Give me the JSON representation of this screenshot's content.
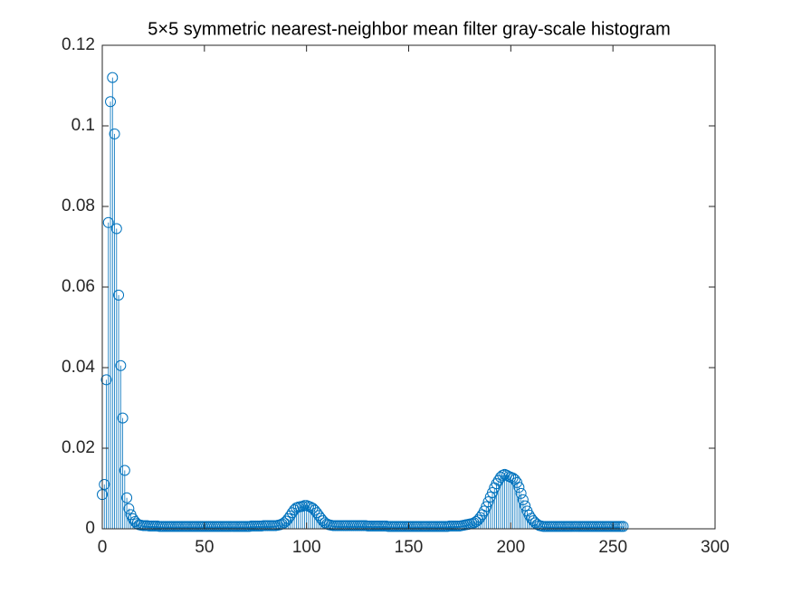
{
  "chart_data": {
    "type": "stem",
    "title": "5×5 symmetric nearest-neighbor mean filter gray-scale histogram",
    "color": "#0072bd",
    "xlim": [
      0,
      300
    ],
    "xticks": [
      0,
      50,
      100,
      150,
      200,
      250,
      300
    ],
    "ylim": [
      0,
      0.12
    ],
    "yticks": [
      0,
      0.02,
      0.04,
      0.06,
      0.08,
      0.1,
      0.12
    ],
    "grid": false,
    "x": [
      0,
      1,
      2,
      3,
      4,
      5,
      6,
      7,
      8,
      9,
      10,
      11,
      12,
      13,
      14,
      15,
      16,
      17,
      18,
      19,
      20,
      21,
      22,
      23,
      24,
      25,
      26,
      27,
      28,
      29,
      30,
      31,
      32,
      33,
      34,
      35,
      36,
      37,
      38,
      39,
      40,
      41,
      42,
      43,
      44,
      45,
      46,
      47,
      48,
      49,
      50,
      51,
      52,
      53,
      54,
      55,
      56,
      57,
      58,
      59,
      60,
      61,
      62,
      63,
      64,
      65,
      66,
      67,
      68,
      69,
      70,
      71,
      72,
      73,
      74,
      75,
      76,
      77,
      78,
      79,
      80,
      81,
      82,
      83,
      84,
      85,
      86,
      87,
      88,
      89,
      90,
      91,
      92,
      93,
      94,
      95,
      96,
      97,
      98,
      99,
      100,
      101,
      102,
      103,
      104,
      105,
      106,
      107,
      108,
      109,
      110,
      111,
      112,
      113,
      114,
      115,
      116,
      117,
      118,
      119,
      120,
      121,
      122,
      123,
      124,
      125,
      126,
      127,
      128,
      129,
      130,
      131,
      132,
      133,
      134,
      135,
      136,
      137,
      138,
      139,
      140,
      141,
      142,
      143,
      144,
      145,
      146,
      147,
      148,
      149,
      150,
      151,
      152,
      153,
      154,
      155,
      156,
      157,
      158,
      159,
      160,
      161,
      162,
      163,
      164,
      165,
      166,
      167,
      168,
      169,
      170,
      171,
      172,
      173,
      174,
      175,
      176,
      177,
      178,
      179,
      180,
      181,
      182,
      183,
      184,
      185,
      186,
      187,
      188,
      189,
      190,
      191,
      192,
      193,
      194,
      195,
      196,
      197,
      198,
      199,
      200,
      201,
      202,
      203,
      204,
      205,
      206,
      207,
      208,
      209,
      210,
      211,
      212,
      213,
      214,
      215,
      216,
      217,
      218,
      219,
      220,
      221,
      222,
      223,
      224,
      225,
      226,
      227,
      228,
      229,
      230,
      231,
      232,
      233,
      234,
      235,
      236,
      237,
      238,
      239,
      240,
      241,
      242,
      243,
      244,
      245,
      246,
      247,
      248,
      249,
      250,
      251,
      252,
      253,
      254,
      255
    ],
    "values": [
      0.0085,
      0.011,
      0.037,
      0.076,
      0.106,
      0.112,
      0.098,
      0.0745,
      0.058,
      0.0405,
      0.0275,
      0.0145,
      0.0077,
      0.005,
      0.0035,
      0.0025,
      0.0018,
      0.0013,
      0.001,
      0.0009,
      0.0008,
      0.0008,
      0.0008,
      0.0007,
      0.0007,
      0.0007,
      0.0007,
      0.0007,
      0.0006,
      0.0006,
      0.0006,
      0.0006,
      0.0006,
      0.0006,
      0.0006,
      0.0006,
      0.0006,
      0.0006,
      0.0006,
      0.0006,
      0.0006,
      0.0006,
      0.0006,
      0.0006,
      0.0006,
      0.0006,
      0.0006,
      0.0006,
      0.0006,
      0.0006,
      0.0006,
      0.0006,
      0.0006,
      0.0006,
      0.0006,
      0.0006,
      0.0006,
      0.0006,
      0.0006,
      0.0006,
      0.0006,
      0.0006,
      0.0006,
      0.0006,
      0.0006,
      0.0006,
      0.0006,
      0.0006,
      0.0006,
      0.0006,
      0.0006,
      0.0006,
      0.0006,
      0.0007,
      0.0007,
      0.0007,
      0.0007,
      0.0007,
      0.0007,
      0.0008,
      0.0008,
      0.0008,
      0.0008,
      0.0008,
      0.0008,
      0.0008,
      0.0009,
      0.001,
      0.0012,
      0.0015,
      0.0019,
      0.0025,
      0.0032,
      0.004,
      0.0047,
      0.0052,
      0.0054,
      0.0055,
      0.0056,
      0.0058,
      0.0058,
      0.0056,
      0.0054,
      0.0051,
      0.0046,
      0.004,
      0.0033,
      0.0026,
      0.002,
      0.0015,
      0.0012,
      0.001,
      0.0009,
      0.0008,
      0.0008,
      0.0008,
      0.0008,
      0.0008,
      0.0008,
      0.0008,
      0.0008,
      0.0008,
      0.0008,
      0.0008,
      0.0008,
      0.0008,
      0.0008,
      0.0008,
      0.0008,
      0.0008,
      0.0007,
      0.0007,
      0.0007,
      0.0007,
      0.0007,
      0.0007,
      0.0007,
      0.0007,
      0.0007,
      0.0007,
      0.0006,
      0.0006,
      0.0006,
      0.0006,
      0.0006,
      0.0006,
      0.0006,
      0.0006,
      0.0006,
      0.0006,
      0.0006,
      0.0006,
      0.0006,
      0.0006,
      0.0006,
      0.0006,
      0.0006,
      0.0006,
      0.0006,
      0.0006,
      0.0006,
      0.0006,
      0.0006,
      0.0006,
      0.0006,
      0.0006,
      0.0006,
      0.0006,
      0.0006,
      0.0006,
      0.0007,
      0.0007,
      0.0007,
      0.0007,
      0.0007,
      0.0007,
      0.0008,
      0.0009,
      0.001,
      0.0011,
      0.0012,
      0.0013,
      0.0015,
      0.0018,
      0.0022,
      0.0028,
      0.0035,
      0.0044,
      0.0055,
      0.0067,
      0.0079,
      0.009,
      0.0102,
      0.0112,
      0.012,
      0.0128,
      0.0133,
      0.0135,
      0.0133,
      0.013,
      0.0128,
      0.0126,
      0.0122,
      0.0115,
      0.0103,
      0.0088,
      0.0072,
      0.0057,
      0.0044,
      0.0034,
      0.0026,
      0.002,
      0.0015,
      0.0011,
      0.0008,
      0.0007,
      0.0006,
      0.0006,
      0.0006,
      0.0006,
      0.0006,
      0.0006,
      0.0006,
      0.0006,
      0.0006,
      0.0006,
      0.0006,
      0.0006,
      0.0006,
      0.0006,
      0.0006,
      0.0006,
      0.0006,
      0.0006,
      0.0006,
      0.0006,
      0.0006,
      0.0006,
      0.0006,
      0.0006,
      0.0006,
      0.0006,
      0.0006,
      0.0006,
      0.0006,
      0.0006,
      0.0006,
      0.0006,
      0.0006,
      0.0006,
      0.0006,
      0.0006,
      0.0006,
      0.0006,
      0.0006,
      0.0006
    ]
  }
}
